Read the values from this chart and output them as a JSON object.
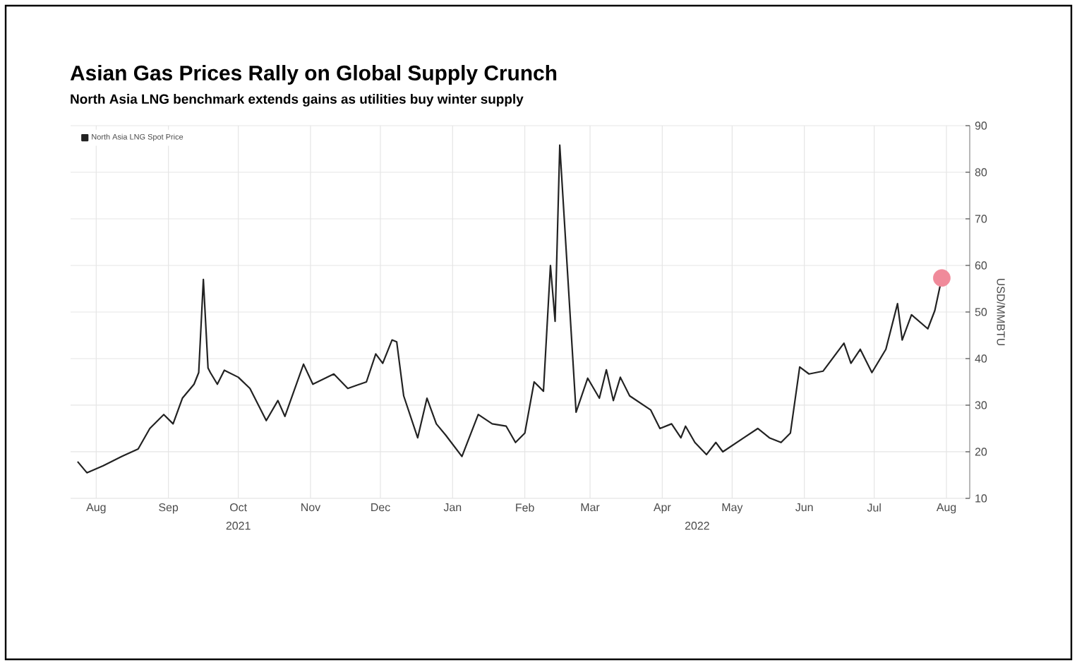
{
  "chart_data": {
    "type": "line",
    "title": "Asian Gas Prices Rally on Global Supply Crunch",
    "subtitle": "North Asia LNG benchmark extends gains as utilities buy winter supply",
    "ylabel": "USD/MMBTU",
    "annotations": [
      "2021",
      "2022"
    ],
    "x": [
      "2021-08-07",
      "2021-08-11",
      "2021-08-18",
      "2021-08-26",
      "2021-09-02",
      "2021-09-07",
      "2021-09-13",
      "2021-09-17",
      "2021-09-21",
      "2021-09-26",
      "2021-09-28",
      "2021-09-30",
      "2021-10-02",
      "2021-10-03",
      "2021-10-06",
      "2021-10-09",
      "2021-10-15",
      "2021-10-20",
      "2021-10-27",
      "2021-11-01",
      "2021-11-04",
      "2021-11-12",
      "2021-11-16",
      "2021-11-25",
      "2021-12-01",
      "2021-12-09",
      "2021-12-13",
      "2021-12-16",
      "2021-12-20",
      "2021-12-22",
      "2021-12-25",
      "2021-12-31",
      "2022-01-04",
      "2022-01-08",
      "2022-01-12",
      "2022-01-19",
      "2022-01-26",
      "2022-02-01",
      "2022-02-07",
      "2022-02-11",
      "2022-02-15",
      "2022-02-19",
      "2022-02-23",
      "2022-02-26",
      "2022-02-28",
      "2022-03-02",
      "2022-03-09",
      "2022-03-14",
      "2022-03-19",
      "2022-03-22",
      "2022-03-25",
      "2022-03-28",
      "2022-04-01",
      "2022-04-10",
      "2022-04-14",
      "2022-04-19",
      "2022-04-23",
      "2022-04-25",
      "2022-04-29",
      "2022-05-04",
      "2022-05-08",
      "2022-05-11",
      "2022-05-20",
      "2022-05-26",
      "2022-05-31",
      "2022-06-05",
      "2022-06-09",
      "2022-06-13",
      "2022-06-17",
      "2022-06-23",
      "2022-07-02",
      "2022-07-05",
      "2022-07-09",
      "2022-07-14",
      "2022-07-20",
      "2022-07-25",
      "2022-07-27",
      "2022-07-31",
      "2022-08-07",
      "2022-08-10",
      "2022-08-13"
    ],
    "series": [
      {
        "name": "North Asia LNG Spot Price",
        "color": "#222222",
        "values": [
          17.9,
          15.5,
          17,
          19,
          20.6,
          25,
          28,
          26,
          31.5,
          34.5,
          37,
          57,
          38,
          37,
          34.5,
          37.5,
          36,
          33.6,
          26.7,
          31,
          27.6,
          38.8,
          34.5,
          36.7,
          33.6,
          35,
          41,
          39,
          44,
          43.6,
          32,
          23,
          31.5,
          26,
          23.6,
          19,
          28,
          26,
          25.5,
          22,
          24,
          35,
          33,
          60,
          48,
          85.8,
          28.5,
          35.8,
          31.5,
          37.6,
          31,
          36,
          32,
          29,
          25,
          26,
          23,
          25.5,
          22,
          19.4,
          22,
          20,
          23,
          25,
          23,
          22,
          24,
          38.2,
          36.7,
          37.3,
          43.3,
          39,
          42,
          37,
          42,
          51.8,
          44,
          49.4,
          46.4,
          50.3,
          57.3
        ]
      },
      {
        "type": "scatter",
        "color": "#f08a9a",
        "x": [
          "2022-08-13"
        ],
        "values": [
          57.3
        ]
      }
    ],
    "xlim": [
      "2021-08-04",
      "2022-08-25"
    ],
    "xticks": [
      {
        "value": "2021-08-15",
        "label": "Aug"
      },
      {
        "value": "2021-09-15",
        "label": "Sep"
      },
      {
        "value": "2021-10-15",
        "label": "Oct"
      },
      {
        "value": "2021-11-15",
        "label": "Nov"
      },
      {
        "value": "2021-12-15",
        "label": "Dec"
      },
      {
        "value": "2022-01-15",
        "label": "Jan"
      },
      {
        "value": "2022-02-15",
        "label": "Feb"
      },
      {
        "value": "2022-03-15",
        "label": "Mar"
      },
      {
        "value": "2022-04-15",
        "label": "Apr"
      },
      {
        "value": "2022-05-15",
        "label": "May"
      },
      {
        "value": "2022-06-15",
        "label": "Jun"
      },
      {
        "value": "2022-07-15",
        "label": "Jul"
      },
      {
        "value": "2022-08-15",
        "label": "Aug"
      }
    ],
    "ylim": [
      10,
      90
    ],
    "yticks": [
      10,
      20,
      30,
      40,
      50,
      60,
      70,
      80,
      90
    ],
    "grid": true,
    "legend": "top left"
  }
}
